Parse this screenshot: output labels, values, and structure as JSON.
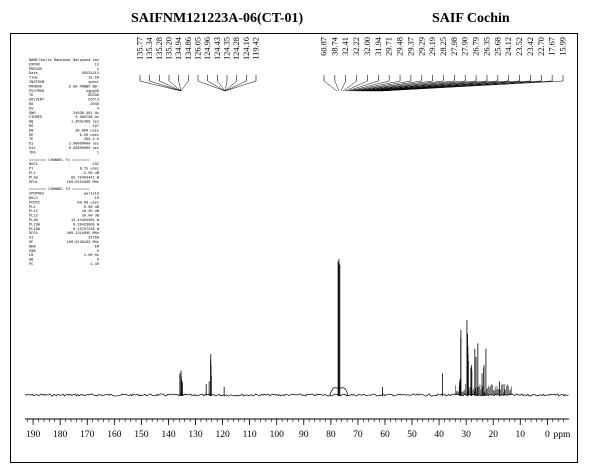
{
  "header": {
    "sample_title": "SAIFNM121223A-06(CT-01)",
    "facility_title": "SAIF Cochin"
  },
  "params": {
    "block1": [
      [
        "NAME",
        "Challa Raveswar_Narayana vav"
      ],
      [
        "EXPNO",
        "13"
      ],
      [
        "PROCNO",
        "1"
      ],
      [
        "Date_",
        "20231212"
      ],
      [
        "Time",
        "19.59"
      ],
      [
        "INSTRUM",
        "spect"
      ],
      [
        "PROBHD",
        "5 mm PABBO BB-"
      ],
      [
        "PULPROG",
        "zgpg30"
      ],
      [
        "TD",
        "65536"
      ],
      [
        "SOLVENT",
        "CDCl3"
      ],
      [
        "NS",
        "2048"
      ],
      [
        "DS",
        "4"
      ],
      [
        "SWH",
        "24038.461 Hz"
      ],
      [
        "FIDRES",
        "0.366798 Hz"
      ],
      [
        "AQ",
        "1.3631488 sec"
      ],
      [
        "RG",
        "197"
      ],
      [
        "DW",
        "20.800 usec"
      ],
      [
        "DE",
        "6.50 usec"
      ],
      [
        "TE",
        "296.3 K"
      ],
      [
        "D1",
        "2.00000000 sec"
      ],
      [
        "D11",
        "0.03000000 sec"
      ],
      [
        "TD0",
        "1"
      ]
    ],
    "channel_f1_header": "======== CHANNEL f1 ========",
    "block2": [
      [
        "NUC1",
        "13C"
      ],
      [
        "P1",
        "9.75 usec"
      ],
      [
        "PL1",
        "-2.00 dB"
      ],
      [
        "PL1W",
        "83.70403442 W"
      ],
      [
        "SFO1",
        "100.6253300 MHz"
      ]
    ],
    "channel_f2_header": "======== CHANNEL f2 ========",
    "block3": [
      [
        "CPDPRG2",
        "waltz16"
      ],
      [
        "NUC2",
        "1H"
      ],
      [
        "PCPD2",
        "80.00 usec"
      ],
      [
        "PL2",
        "0.00 dB"
      ],
      [
        "PL12",
        "18.30 dB"
      ],
      [
        "PL13",
        "20.00 dB"
      ],
      [
        "PL2W",
        "14.44484901 W"
      ],
      [
        "PL12W",
        "0.20423805 W"
      ],
      [
        "PL13W",
        "0.13787538 W"
      ],
      [
        "SFO2",
        "400.1316005 MHz"
      ],
      [
        "SI",
        "32768"
      ],
      [
        "SF",
        "100.6128193 MHz"
      ],
      [
        "WDW",
        "EM"
      ],
      [
        "SSB",
        "0"
      ],
      [
        "LB",
        "1.00 Hz"
      ],
      [
        "GB",
        "0"
      ],
      [
        "PC",
        "1.40"
      ]
    ]
  },
  "chart_data": {
    "type": "line",
    "xlabel": "ppm",
    "xlim": [
      193,
      -8
    ],
    "x_reversed": true,
    "tick_labels": [
      "190",
      "180",
      "170",
      "160",
      "150",
      "140",
      "130",
      "120",
      "110",
      "100",
      "90",
      "80",
      "70",
      "60",
      "50",
      "40",
      "30",
      "20",
      "10",
      "0"
    ],
    "tick_values": [
      190,
      180,
      170,
      160,
      150,
      140,
      130,
      120,
      110,
      100,
      90,
      80,
      70,
      60,
      50,
      40,
      30,
      20,
      10,
      0
    ],
    "minor_tick_step": 2,
    "grid": false,
    "peak_labels_aromatic": [
      "135.77",
      "135.34",
      "135.28",
      "135.20",
      "134.94",
      "134.86",
      "126.05",
      "124.96",
      "124.43",
      "124.35",
      "124.28",
      "124.16",
      "119.42"
    ],
    "peak_labels_aliphatic": [
      "60.87",
      "38.74",
      "32.41",
      "32.22",
      "32.00",
      "31.94",
      "29.71",
      "29.48",
      "29.37",
      "29.29",
      "29.19",
      "28.25",
      "27.98",
      "27.90",
      "26.79",
      "26.35",
      "25.68",
      "24.12",
      "23.52",
      "23.42",
      "22.70",
      "17.67",
      "15.99"
    ],
    "peaks": [
      {
        "ppm": 135.77,
        "height": 0.16
      },
      {
        "ppm": 135.34,
        "height": 0.18
      },
      {
        "ppm": 135.28,
        "height": 0.14
      },
      {
        "ppm": 135.2,
        "height": 0.12
      },
      {
        "ppm": 134.94,
        "height": 0.1
      },
      {
        "ppm": 134.86,
        "height": 0.09
      },
      {
        "ppm": 126.05,
        "height": 0.08
      },
      {
        "ppm": 124.96,
        "height": 0.1
      },
      {
        "ppm": 124.43,
        "height": 0.26
      },
      {
        "ppm": 124.35,
        "height": 0.3
      },
      {
        "ppm": 124.28,
        "height": 0.22
      },
      {
        "ppm": 124.16,
        "height": 0.14
      },
      {
        "ppm": 119.42,
        "height": 0.06
      },
      {
        "ppm": 77.32,
        "height": 0.98
      },
      {
        "ppm": 77.0,
        "height": 1.0
      },
      {
        "ppm": 76.68,
        "height": 0.96
      },
      {
        "ppm": 60.87,
        "height": 0.06
      },
      {
        "ppm": 38.74,
        "height": 0.16
      },
      {
        "ppm": 32.41,
        "height": 0.1
      },
      {
        "ppm": 32.22,
        "height": 0.12
      },
      {
        "ppm": 32.0,
        "height": 0.42
      },
      {
        "ppm": 31.94,
        "height": 0.48
      },
      {
        "ppm": 29.71,
        "height": 0.55
      },
      {
        "ppm": 29.48,
        "height": 0.45
      },
      {
        "ppm": 29.37,
        "height": 0.36
      },
      {
        "ppm": 29.29,
        "height": 0.3
      },
      {
        "ppm": 29.19,
        "height": 0.25
      },
      {
        "ppm": 28.25,
        "height": 0.2
      },
      {
        "ppm": 27.98,
        "height": 0.22
      },
      {
        "ppm": 27.9,
        "height": 0.18
      },
      {
        "ppm": 26.79,
        "height": 0.34
      },
      {
        "ppm": 26.35,
        "height": 0.28
      },
      {
        "ppm": 25.68,
        "height": 0.38
      },
      {
        "ppm": 24.12,
        "height": 0.16
      },
      {
        "ppm": 23.52,
        "height": 0.2
      },
      {
        "ppm": 23.42,
        "height": 0.22
      },
      {
        "ppm": 22.7,
        "height": 0.34
      },
      {
        "ppm": 17.67,
        "height": 0.1
      },
      {
        "ppm": 15.99,
        "height": 0.08
      }
    ]
  }
}
